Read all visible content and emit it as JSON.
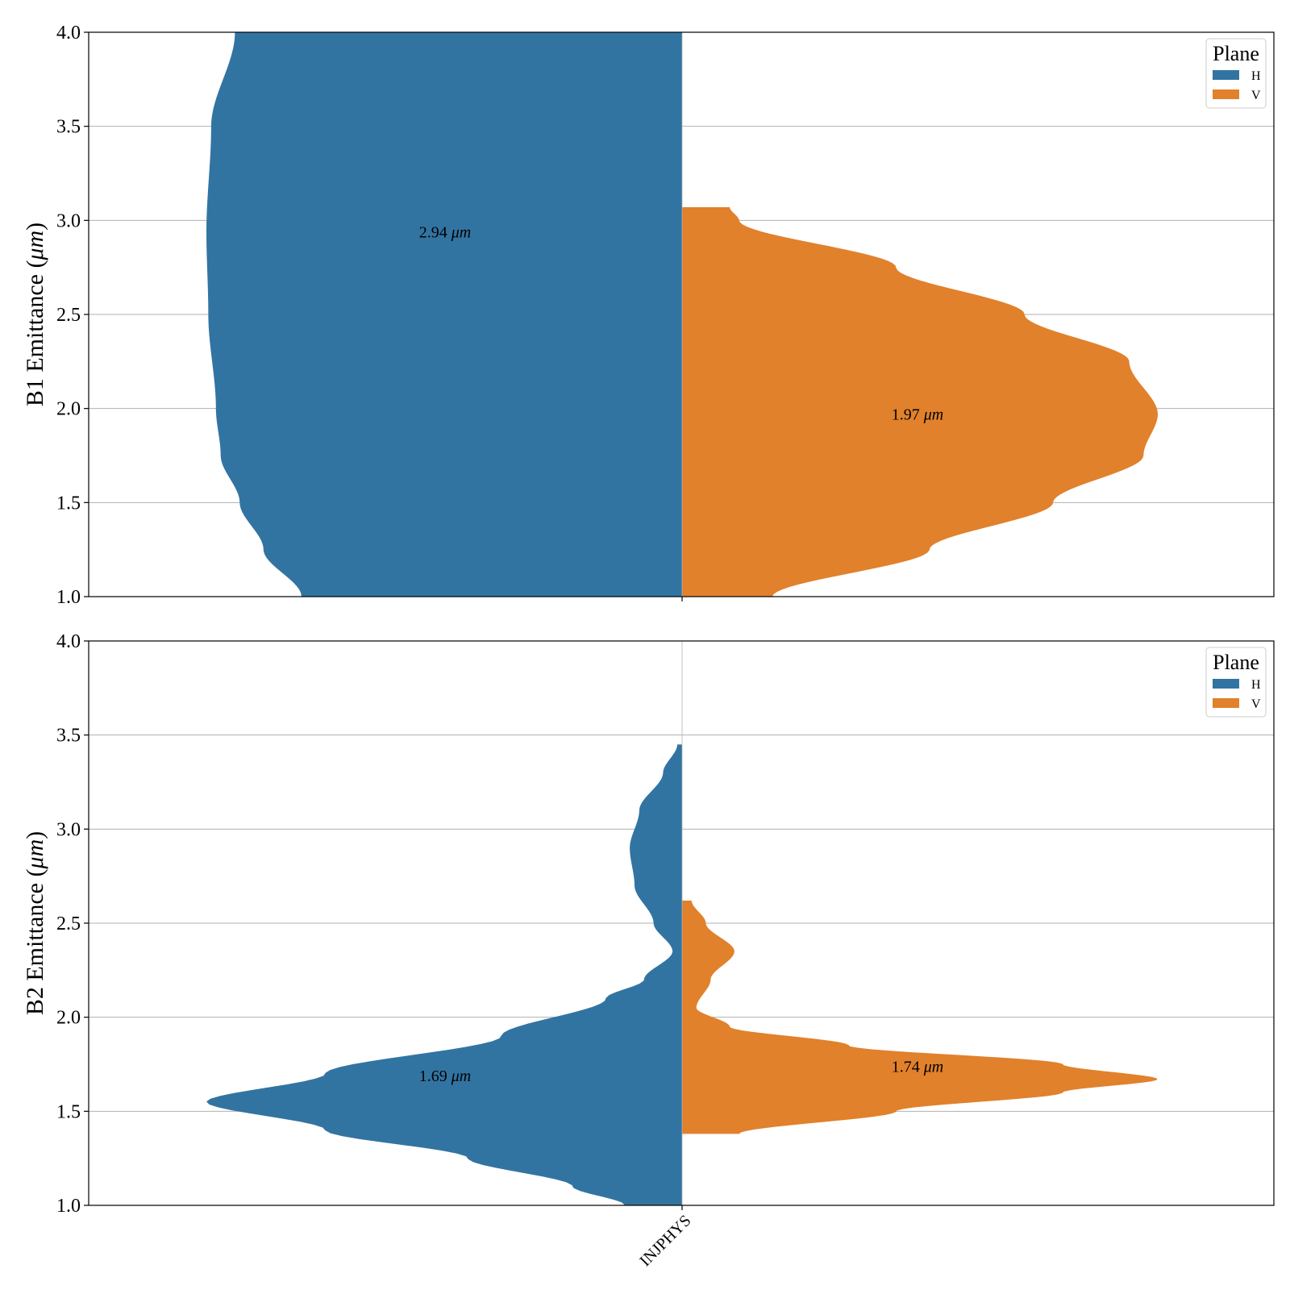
{
  "colors": {
    "H": "#3274a1",
    "V": "#e1812c",
    "grid": "#b0b0b0",
    "axis": "#000000"
  },
  "chart_data": [
    {
      "type": "violin",
      "ylabel": "B1 Emittance (",
      "ylabel_unit": "μm",
      "ylabel_close": ")",
      "ylim": [
        1.0,
        4.0
      ],
      "yticks": [
        "1.0",
        "1.5",
        "2.0",
        "2.5",
        "3.0",
        "3.5",
        "4.0"
      ],
      "grid": true,
      "split": true,
      "categories": [
        "INJPHYS"
      ],
      "legend": {
        "title": "Plane",
        "placement": "upper right",
        "entries": [
          "H",
          "V"
        ]
      },
      "series": [
        {
          "name": "H",
          "median": 2.94,
          "annotation": "2.94",
          "range": [
            1.0,
            4.0
          ],
          "density_profile": [
            [
              1.0,
              0.8
            ],
            [
              1.25,
              0.88
            ],
            [
              1.5,
              0.93
            ],
            [
              1.75,
              0.97
            ],
            [
              2.0,
              0.98
            ],
            [
              2.5,
              0.996
            ],
            [
              2.94,
              1.0
            ],
            [
              3.5,
              0.99
            ],
            [
              4.0,
              0.94
            ]
          ]
        },
        {
          "name": "V",
          "median": 1.97,
          "annotation": "1.97",
          "range": [
            1.0,
            3.07
          ],
          "density_profile": [
            [
              1.0,
              0.19
            ],
            [
              1.25,
              0.52
            ],
            [
              1.5,
              0.78
            ],
            [
              1.75,
              0.97
            ],
            [
              1.97,
              1.0
            ],
            [
              2.25,
              0.94
            ],
            [
              2.5,
              0.72
            ],
            [
              2.75,
              0.45
            ],
            [
              3.0,
              0.12
            ],
            [
              3.07,
              0.1
            ]
          ]
        }
      ]
    },
    {
      "type": "violin",
      "ylabel": "B2 Emittance (",
      "ylabel_unit": "μm",
      "ylabel_close": ")",
      "ylim": [
        1.0,
        4.0
      ],
      "yticks": [
        "1.0",
        "1.5",
        "2.0",
        "2.5",
        "3.0",
        "3.5",
        "4.0"
      ],
      "xticks": [
        "INJPHYS"
      ],
      "grid": true,
      "split": true,
      "categories": [
        "INJPHYS"
      ],
      "legend": {
        "title": "Plane",
        "placement": "upper right",
        "entries": [
          "H",
          "V"
        ]
      },
      "series": [
        {
          "name": "H",
          "median": 1.69,
          "annotation": "1.69",
          "range": [
            1.0,
            3.45
          ],
          "density_profile": [
            [
              1.0,
              0.12
            ],
            [
              1.1,
              0.23
            ],
            [
              1.25,
              0.45
            ],
            [
              1.4,
              0.75
            ],
            [
              1.55,
              1.0
            ],
            [
              1.7,
              0.75
            ],
            [
              1.9,
              0.38
            ],
            [
              2.1,
              0.16
            ],
            [
              2.2,
              0.08
            ],
            [
              2.35,
              0.02
            ],
            [
              2.5,
              0.06
            ],
            [
              2.7,
              0.1
            ],
            [
              2.9,
              0.11
            ],
            [
              3.1,
              0.09
            ],
            [
              3.3,
              0.04
            ],
            [
              3.45,
              0.01
            ]
          ]
        },
        {
          "name": "V",
          "median": 1.74,
          "annotation": "1.74",
          "range": [
            1.38,
            2.62
          ],
          "density_profile": [
            [
              1.38,
              0.12
            ],
            [
              1.5,
              0.45
            ],
            [
              1.6,
              0.8
            ],
            [
              1.67,
              1.0
            ],
            [
              1.75,
              0.8
            ],
            [
              1.85,
              0.35
            ],
            [
              1.95,
              0.1
            ],
            [
              2.05,
              0.03
            ],
            [
              2.2,
              0.06
            ],
            [
              2.35,
              0.11
            ],
            [
              2.5,
              0.05
            ],
            [
              2.62,
              0.02
            ]
          ]
        }
      ]
    }
  ]
}
